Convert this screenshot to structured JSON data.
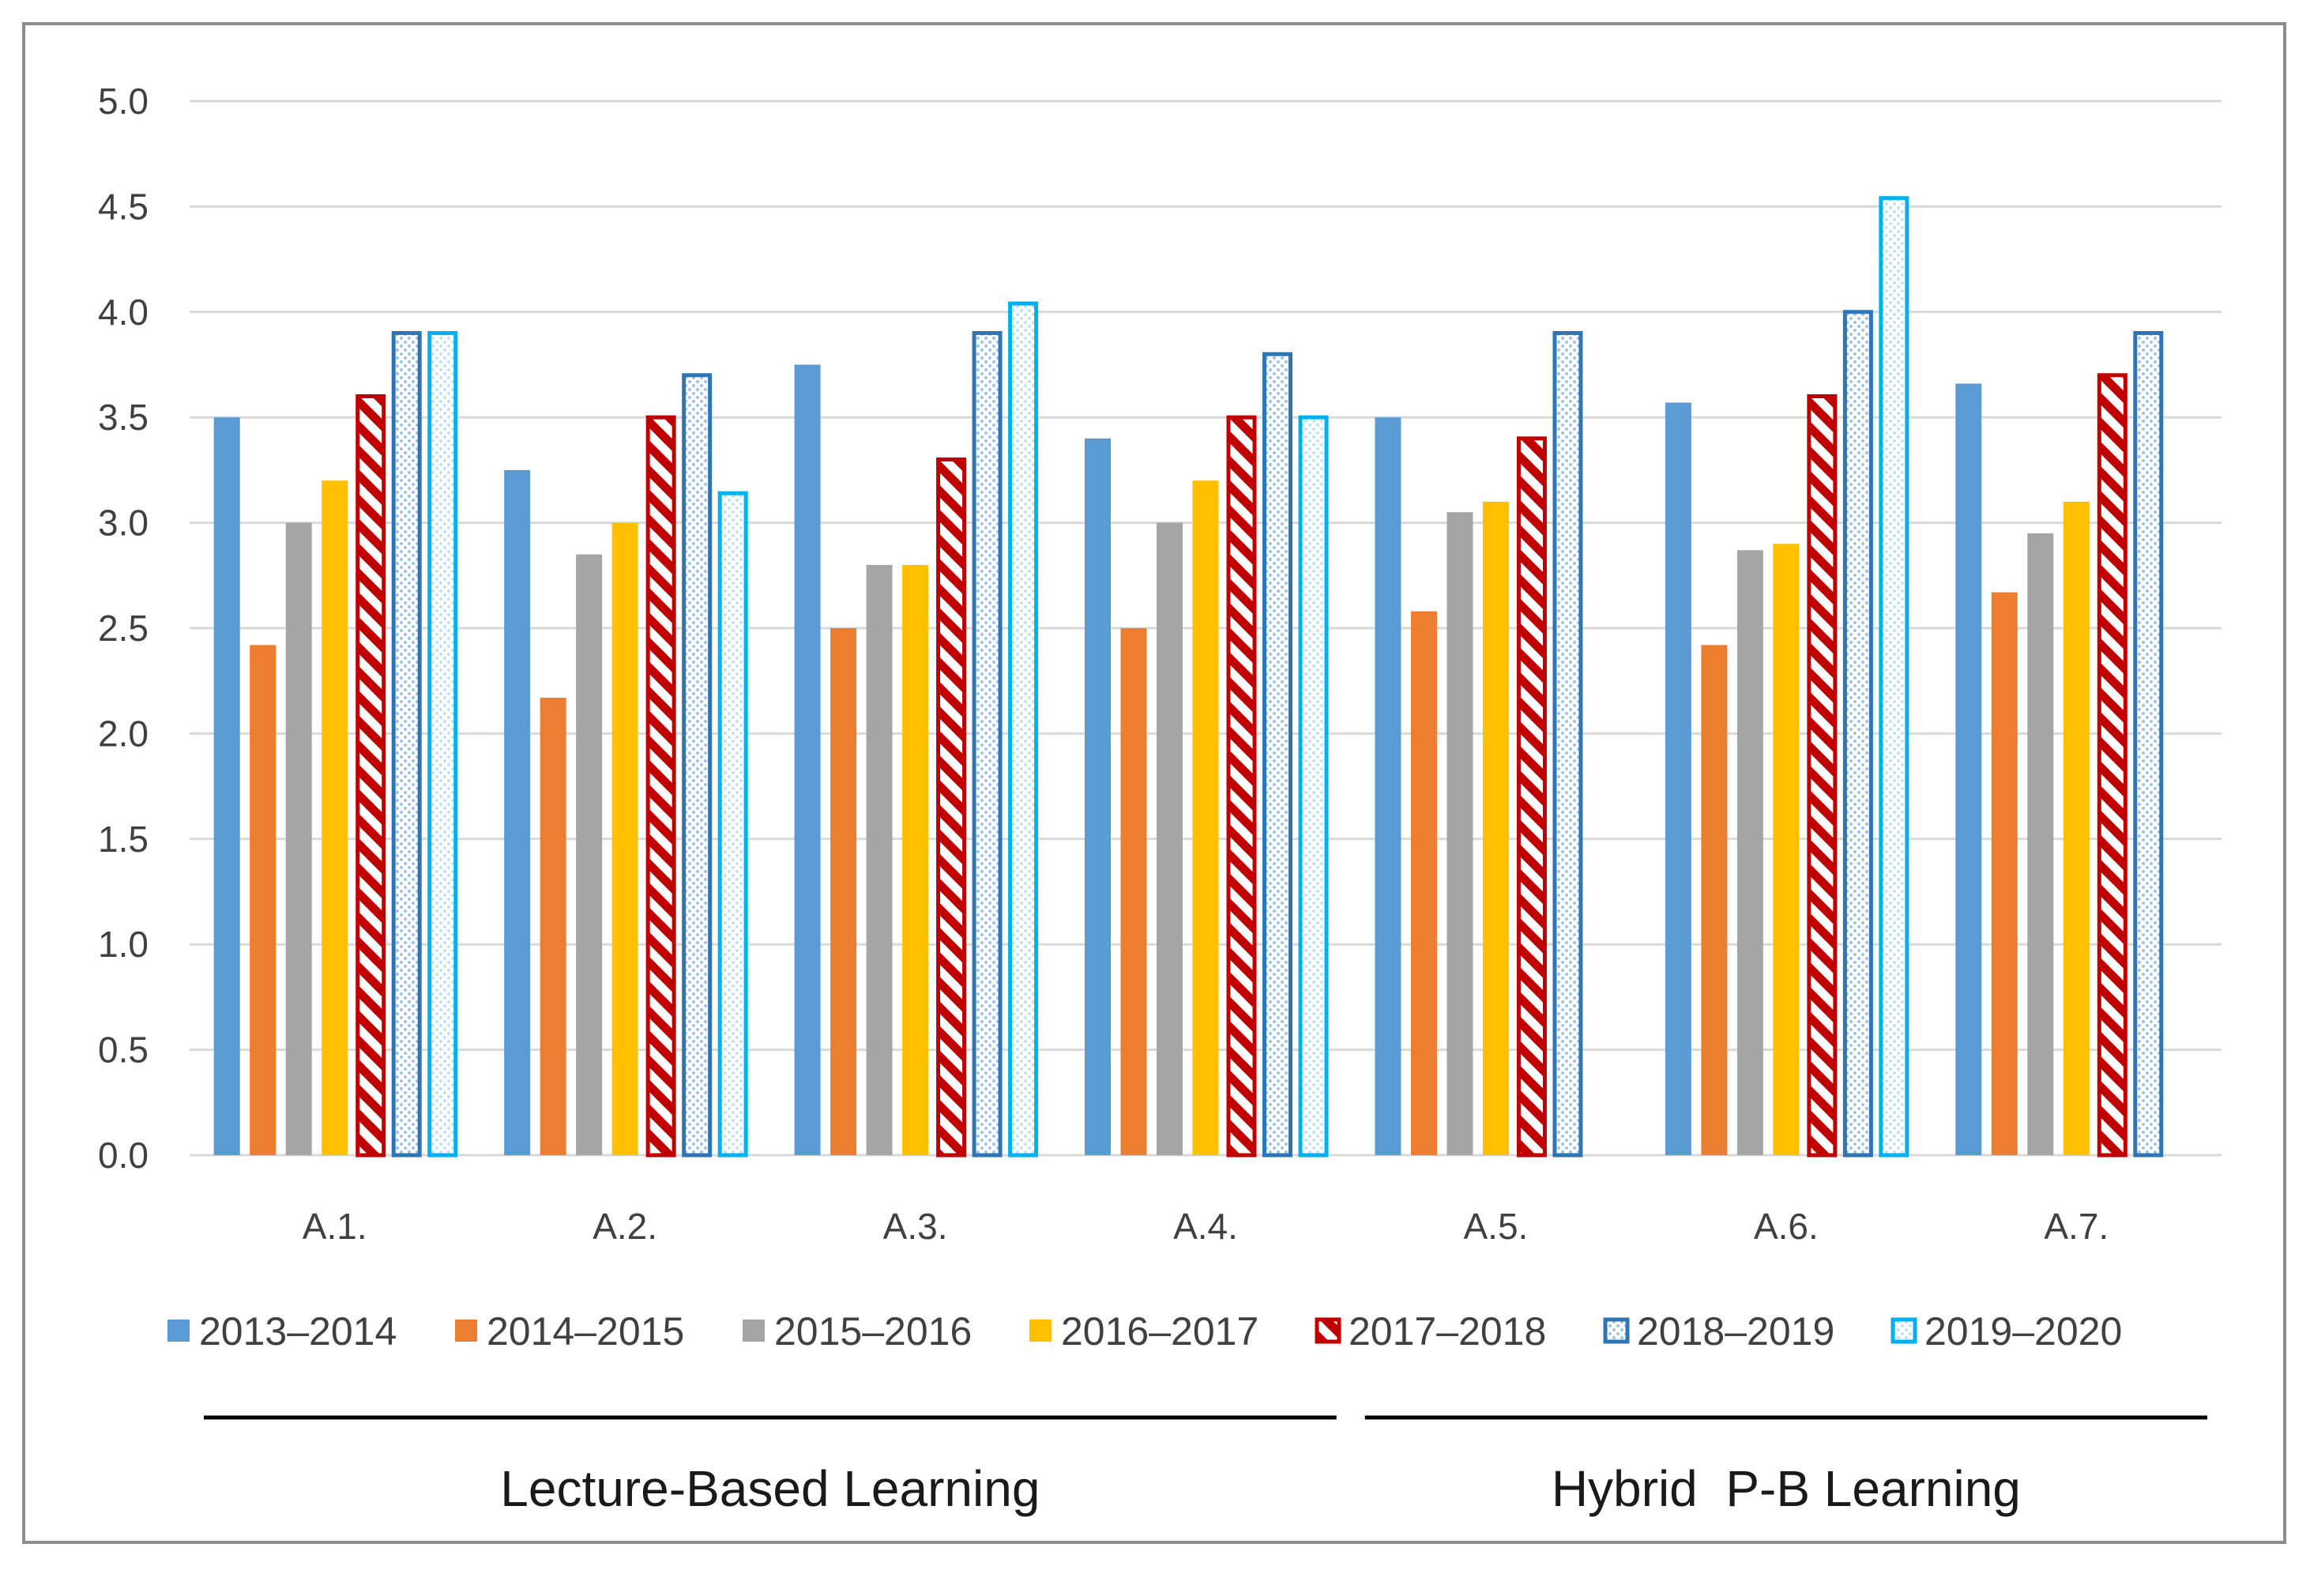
{
  "chart_data": {
    "type": "bar",
    "title": "",
    "xlabel": "",
    "ylabel": "",
    "ylim": [
      0,
      5
    ],
    "yticks": [
      "0.0",
      "0.5",
      "1.0",
      "1.5",
      "2.0",
      "2.5",
      "3.0",
      "3.5",
      "4.0",
      "4.5",
      "5.0"
    ],
    "grid": true,
    "legend_position": "bottom",
    "categories": [
      "A.1.",
      "A.2.",
      "A.3.",
      "A.4.",
      "A.5.",
      "A.6.",
      "A.7."
    ],
    "series": [
      {
        "name": "2013–2014",
        "color": "#5b9bd5",
        "pattern": "solid",
        "values": [
          3.5,
          3.25,
          3.75,
          3.4,
          3.5,
          3.57,
          3.66
        ]
      },
      {
        "name": "2014–2015",
        "color": "#ed7d31",
        "pattern": "solid",
        "values": [
          2.42,
          2.17,
          2.5,
          2.5,
          2.58,
          2.42,
          2.67
        ]
      },
      {
        "name": "2015–2016",
        "color": "#a5a5a5",
        "pattern": "solid",
        "values": [
          3.0,
          2.85,
          2.8,
          3.0,
          3.05,
          2.87,
          2.95
        ]
      },
      {
        "name": "2016–2017",
        "color": "#ffc000",
        "pattern": "solid",
        "values": [
          3.2,
          3.0,
          2.8,
          3.2,
          3.1,
          2.9,
          3.1
        ]
      },
      {
        "name": "2017–2018",
        "color": "#c00000",
        "pattern": "diagonal",
        "values": [
          3.6,
          3.5,
          3.3,
          3.5,
          3.4,
          3.6,
          3.7
        ]
      },
      {
        "name": "2018–2019",
        "color": "#2e75b6",
        "pattern": "dotted",
        "values": [
          3.9,
          3.7,
          3.9,
          3.8,
          3.9,
          4.0,
          3.9
        ]
      },
      {
        "name": "2019–2020",
        "color": "#00b0f0",
        "pattern": "dotted",
        "values": [
          3.9,
          3.14,
          4.04,
          3.5,
          null,
          4.54,
          null
        ]
      }
    ],
    "group_labels": [
      {
        "label": "Lecture-Based Learning",
        "categories": [
          "A.1.",
          "A.2.",
          "A.3.",
          "A.4."
        ]
      },
      {
        "label": "Hybrid  P-B Learning",
        "categories": [
          "A.5.",
          "A.6.",
          "A.7."
        ]
      }
    ]
  }
}
